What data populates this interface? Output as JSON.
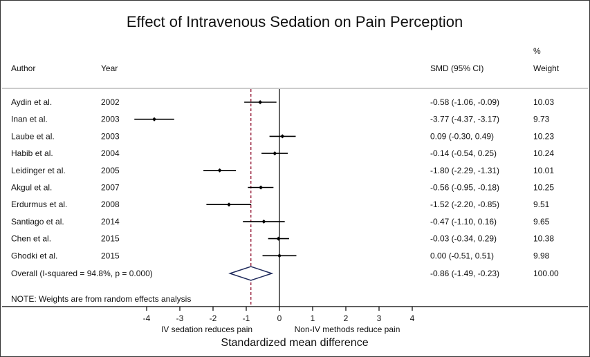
{
  "chart_data": {
    "type": "forest",
    "title": "Effect of Intravenous Sedation on Pain Perception",
    "columns": {
      "author": "Author",
      "year": "Year",
      "smd": "SMD (95% CI)",
      "weight_top": "%",
      "weight": "Weight"
    },
    "studies": [
      {
        "author": "Aydin et al.",
        "year": "2002",
        "smd": -0.58,
        "lo": -1.06,
        "hi": -0.09,
        "ci_text": "-0.58 (-1.06, -0.09)",
        "weight": "10.03"
      },
      {
        "author": "Inan et al.",
        "year": "2003",
        "smd": -3.77,
        "lo": -4.37,
        "hi": -3.17,
        "ci_text": "-3.77 (-4.37, -3.17)",
        "weight": "9.73"
      },
      {
        "author": "Laube et al.",
        "year": "2003",
        "smd": 0.09,
        "lo": -0.3,
        "hi": 0.49,
        "ci_text": "0.09 (-0.30, 0.49)",
        "weight": "10.23"
      },
      {
        "author": "Habib et al.",
        "year": "2004",
        "smd": -0.14,
        "lo": -0.54,
        "hi": 0.25,
        "ci_text": "-0.14 (-0.54, 0.25)",
        "weight": "10.24"
      },
      {
        "author": "Leidinger et al.",
        "year": "2005",
        "smd": -1.8,
        "lo": -2.29,
        "hi": -1.31,
        "ci_text": "-1.80 (-2.29, -1.31)",
        "weight": "10.01"
      },
      {
        "author": "Akgul et al.",
        "year": "2007",
        "smd": -0.56,
        "lo": -0.95,
        "hi": -0.18,
        "ci_text": "-0.56 (-0.95, -0.18)",
        "weight": "10.25"
      },
      {
        "author": "Erdurmus et al.",
        "year": "2008",
        "smd": -1.52,
        "lo": -2.2,
        "hi": -0.85,
        "ci_text": "-1.52 (-2.20, -0.85)",
        "weight": "9.51"
      },
      {
        "author": "Santiago et al.",
        "year": "2014",
        "smd": -0.47,
        "lo": -1.1,
        "hi": 0.16,
        "ci_text": "-0.47 (-1.10, 0.16)",
        "weight": "9.65"
      },
      {
        "author": "Chen et al.",
        "year": "2015",
        "smd": -0.03,
        "lo": -0.34,
        "hi": 0.29,
        "ci_text": "-0.03 (-0.34, 0.29)",
        "weight": "10.38"
      },
      {
        "author": "Ghodki et al.",
        "year": "2015",
        "smd": 0.0,
        "lo": -0.51,
        "hi": 0.51,
        "ci_text": "0.00 (-0.51, 0.51)",
        "weight": "9.98"
      }
    ],
    "overall": {
      "label": "Overall  (I-squared = 94.8%, p = 0.000)",
      "smd": -0.86,
      "lo": -1.49,
      "hi": -0.23,
      "ci_text": "-0.86 (-1.49, -0.23)",
      "weight": "100.00"
    },
    "note": "NOTE: Weights are from random effects analysis",
    "xlim": [
      -4,
      4
    ],
    "xticks": [
      "-4",
      "-3",
      "-2",
      "-1",
      "0",
      "1",
      "2",
      "3",
      "4"
    ],
    "left_label": "IV sedation reduces pain",
    "right_label": "Non-IV methods reduce pain",
    "xlabel": "Standardized mean difference",
    "colors": {
      "diamond": "#1f2a5c",
      "overall_line": "#a0304a",
      "marks": "#000000"
    }
  }
}
